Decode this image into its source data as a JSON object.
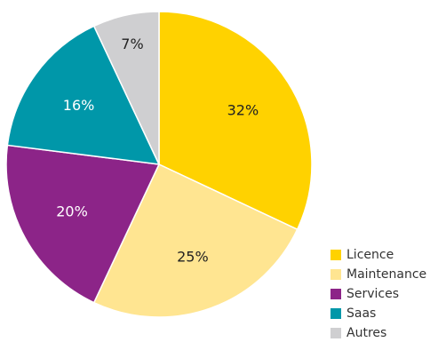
{
  "chart_data": {
    "type": "pie",
    "categories": [
      "Licence",
      "Maintenance",
      "Services",
      "Saas",
      "Autres"
    ],
    "values": [
      32,
      25,
      20,
      16,
      7
    ],
    "value_labels": [
      "32%",
      "25%",
      "20%",
      "16%",
      "7%"
    ],
    "colors": [
      "#ffd200",
      "#ffe591",
      "#8c2488",
      "#0097a9",
      "#cfcfd1"
    ],
    "label_colors": [
      "#222222",
      "#222222",
      "#ffffff",
      "#ffffff",
      "#222222"
    ],
    "legend": "bottom-right"
  }
}
